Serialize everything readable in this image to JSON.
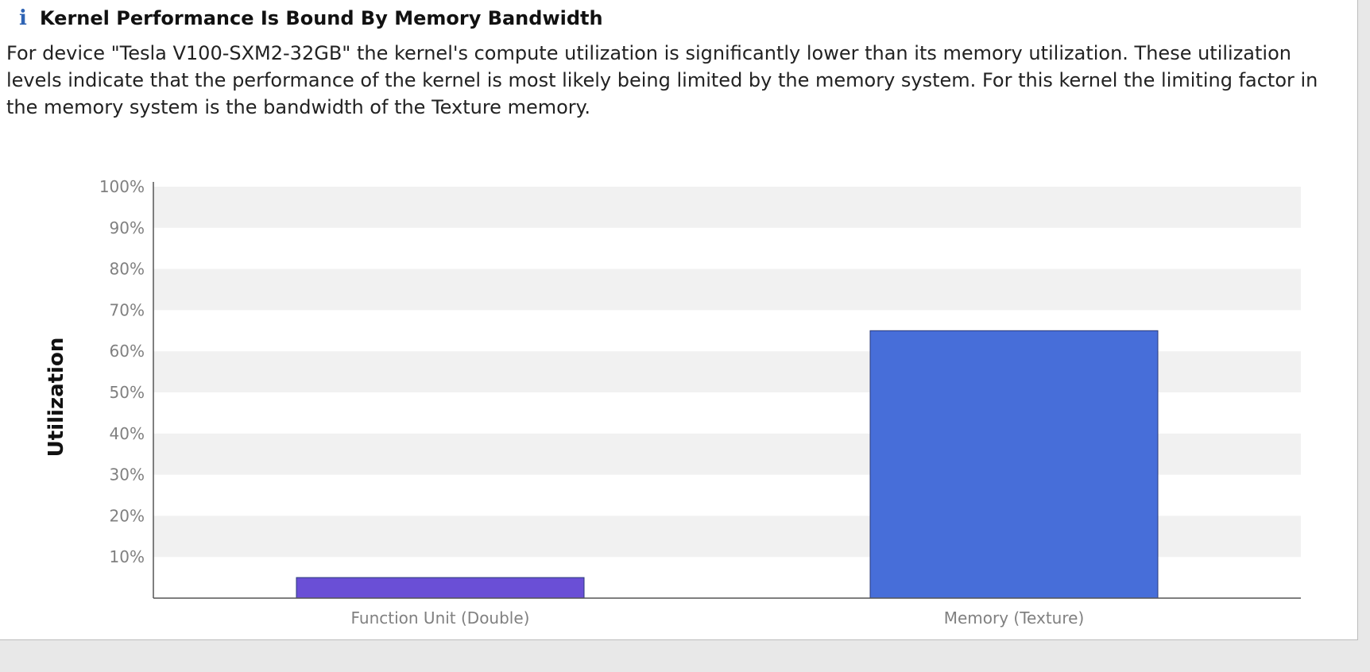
{
  "analysis": {
    "icon": "info-icon",
    "title": "Kernel Performance Is Bound By Memory Bandwidth",
    "description": "For device \"Tesla V100-SXM2-32GB\" the kernel's compute utilization is significantly lower than its memory utilization. These utilization levels indicate that the performance of the kernel is most likely being limited by the memory system. For this kernel the limiting factor in the memory system is the bandwidth of the Texture memory."
  },
  "chart_data": {
    "type": "bar",
    "title": "",
    "xlabel": "",
    "ylabel": "Utilization",
    "ylim": [
      0,
      100
    ],
    "y_ticks": [
      "100%",
      "90%",
      "80%",
      "70%",
      "60%",
      "50%",
      "40%",
      "30%",
      "20%",
      "10%"
    ],
    "categories": [
      "Function Unit (Double)",
      "Memory (Texture)"
    ],
    "values": [
      5,
      65
    ],
    "colors": [
      "#6a4fd6",
      "#476ed9"
    ],
    "band_color": "#f1f1f1",
    "grid": "alternating-bands",
    "legend": "none"
  }
}
